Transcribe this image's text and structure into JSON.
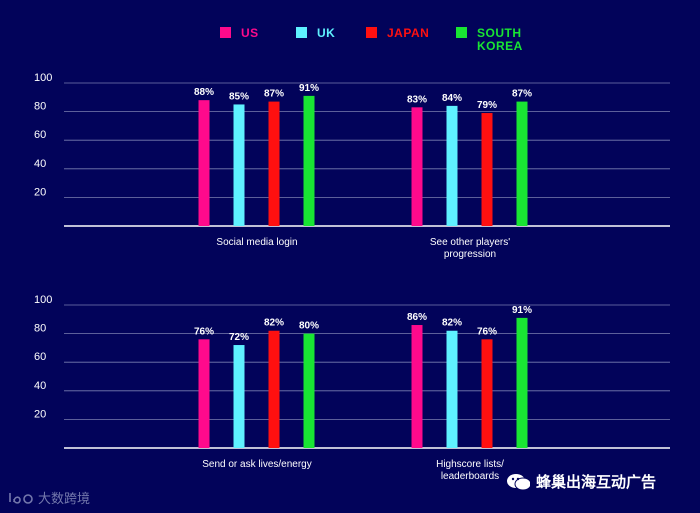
{
  "chart_data": {
    "type": "bar",
    "series": [
      {
        "name": "US",
        "color": "#ff0a8c"
      },
      {
        "name": "UK",
        "color": "#5ff1ff"
      },
      {
        "name": "JAPAN",
        "color": "#ff1010"
      },
      {
        "name": "SOUTH\nKOREA",
        "color": "#19e533"
      }
    ],
    "ylim": [
      0,
      100
    ],
    "yticks": [
      20,
      40,
      60,
      80,
      100
    ],
    "panels": [
      {
        "categories": [
          {
            "label": [
              "Social media login"
            ],
            "values": [
              88,
              85,
              87,
              91
            ],
            "labels": [
              "88%",
              "85%",
              "87%",
              "91%"
            ]
          },
          {
            "label": [
              "See other players'",
              "progression"
            ],
            "values": [
              83,
              84,
              79,
              87
            ],
            "labels": [
              "83%",
              "84%",
              "79%",
              "87%"
            ]
          }
        ]
      },
      {
        "categories": [
          {
            "label": [
              "Send or ask lives/energy"
            ],
            "values": [
              76,
              72,
              82,
              80
            ],
            "labels": [
              "76%",
              "72%",
              "82%",
              "80%"
            ]
          },
          {
            "label": [
              "Highscore lists/",
              "leaderboards"
            ],
            "values": [
              86,
              82,
              76,
              91
            ],
            "labels": [
              "86%",
              "82%",
              "76%",
              "91%"
            ]
          }
        ]
      }
    ]
  },
  "watermarks": {
    "left_text": "大数跨境",
    "right_text": "蜂巢出海互动广告",
    "right_icon": "wechat-icon"
  }
}
